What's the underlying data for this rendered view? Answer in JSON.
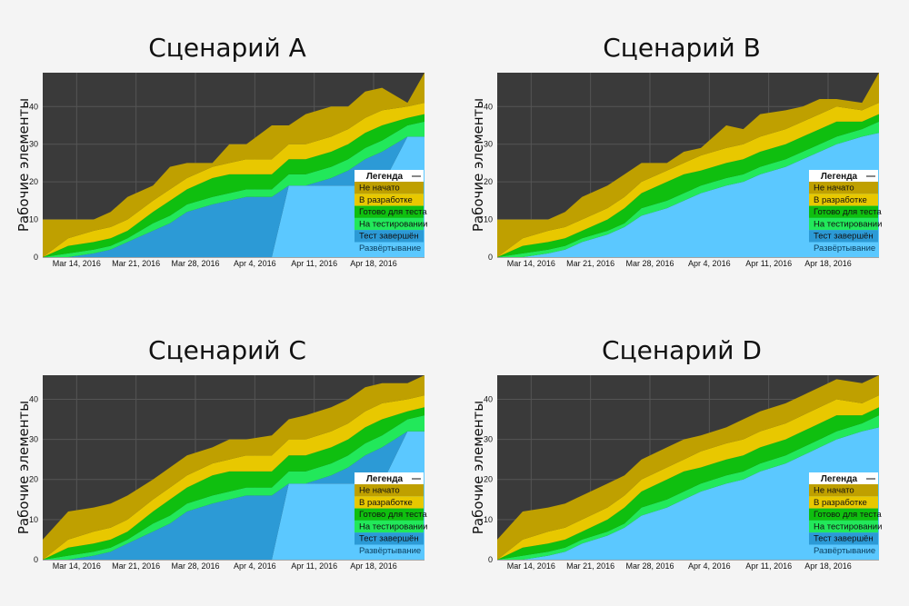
{
  "colors": {
    "background": "#3a3a3a",
    "grid": "#555555",
    "deploy": "#5bc8ff",
    "test_done": "#2c9ad6",
    "in_testing": "#22e85a",
    "ready_for_test": "#0fbf0f",
    "in_dev": "#e8c800",
    "not_started": "#bfa000"
  },
  "legend": {
    "title": "Легенда",
    "toggle": "—",
    "items": [
      {
        "label": "Не начато",
        "color_key": "not_started"
      },
      {
        "label": "В разработке",
        "color_key": "in_dev"
      },
      {
        "label": "Готово для теста",
        "color_key": "ready_for_test"
      },
      {
        "label": "На тестировании",
        "color_key": "in_testing"
      },
      {
        "label": "Тест завершён",
        "color_key": "test_done"
      },
      {
        "label": "Развёртывание",
        "color_key": "deploy"
      }
    ]
  },
  "chart_data": [
    {
      "type": "area",
      "title": "Сценарий A",
      "ylabel": "Рабочие элементы",
      "ylim": [
        0,
        49
      ],
      "yticks": [
        0,
        10,
        20,
        30,
        40
      ],
      "xlim": [
        "2016-03-10",
        "2016-04-24"
      ],
      "xticks": [
        "Mar 14, 2016",
        "Mar 21, 2016",
        "Mar 28, 2016",
        "Apr 4, 2016",
        "Apr 11, 2016",
        "Apr 18, 2016"
      ],
      "grid": true,
      "legend_position": "right",
      "x": [
        "2016-03-10",
        "2016-03-13",
        "2016-03-16",
        "2016-03-18",
        "2016-03-20",
        "2016-03-23",
        "2016-03-25",
        "2016-03-27",
        "2016-03-30",
        "2016-04-01",
        "2016-04-03",
        "2016-04-06",
        "2016-04-08",
        "2016-04-10",
        "2016-04-13",
        "2016-04-15",
        "2016-04-17",
        "2016-04-19",
        "2016-04-22",
        "2016-04-24"
      ],
      "series": [
        {
          "key": "deploy",
          "values": [
            0,
            0,
            0,
            0,
            0,
            0,
            0,
            0,
            0,
            0,
            0,
            0,
            19,
            19,
            19,
            19,
            19,
            19,
            32,
            32
          ]
        },
        {
          "key": "test_done",
          "values": [
            0,
            0,
            1,
            2,
            4,
            7,
            9,
            12,
            14,
            15,
            16,
            16,
            0,
            0,
            2,
            4,
            7,
            9,
            0,
            0
          ]
        },
        {
          "key": "in_testing",
          "values": [
            0,
            1,
            1,
            1,
            1,
            2,
            2,
            2,
            2,
            2,
            2,
            2,
            3,
            3,
            3,
            3,
            3,
            3,
            3,
            4
          ]
        },
        {
          "key": "ready_for_test",
          "values": [
            0,
            2,
            2,
            2,
            2,
            3,
            4,
            4,
            5,
            5,
            4,
            4,
            4,
            4,
            4,
            4,
            4,
            4,
            2,
            2
          ]
        },
        {
          "key": "in_dev",
          "values": [
            0,
            2,
            3,
            3,
            3,
            3,
            3,
            3,
            3,
            3,
            4,
            4,
            4,
            4,
            4,
            4,
            4,
            4,
            3,
            3
          ]
        },
        {
          "key": "not_started",
          "values": [
            10,
            5,
            3,
            4,
            6,
            4,
            6,
            4,
            1,
            5,
            4,
            9,
            5,
            8,
            8,
            6,
            7,
            6,
            1,
            8
          ]
        }
      ]
    },
    {
      "type": "area",
      "title": "Сценарий B",
      "ylabel": "Рабочие элементы",
      "ylim": [
        0,
        49
      ],
      "yticks": [
        0,
        10,
        20,
        30,
        40
      ],
      "xlim": [
        "2016-03-10",
        "2016-04-24"
      ],
      "xticks": [
        "Mar 14, 2016",
        "Mar 21, 2016",
        "Mar 28, 2016",
        "Apr 4, 2016",
        "Apr 11, 2016",
        "Apr 18, 2016"
      ],
      "grid": true,
      "legend_position": "right",
      "x": [
        "2016-03-10",
        "2016-03-13",
        "2016-03-16",
        "2016-03-18",
        "2016-03-20",
        "2016-03-23",
        "2016-03-25",
        "2016-03-27",
        "2016-03-30",
        "2016-04-01",
        "2016-04-03",
        "2016-04-06",
        "2016-04-08",
        "2016-04-10",
        "2016-04-13",
        "2016-04-15",
        "2016-04-17",
        "2016-04-19",
        "2016-04-22",
        "2016-04-24"
      ],
      "series": [
        {
          "key": "deploy",
          "values": [
            0,
            0,
            1,
            2,
            4,
            6,
            8,
            11,
            13,
            15,
            17,
            19,
            20,
            22,
            24,
            26,
            28,
            30,
            32,
            33
          ]
        },
        {
          "key": "test_done",
          "values": [
            0,
            0,
            0,
            0,
            0,
            0,
            0,
            0,
            0,
            0,
            0,
            0,
            0,
            0,
            0,
            0,
            0,
            0,
            0,
            0
          ]
        },
        {
          "key": "in_testing",
          "values": [
            0,
            1,
            1,
            1,
            1,
            1,
            1,
            2,
            2,
            2,
            2,
            2,
            2,
            2,
            2,
            2,
            2,
            2,
            2,
            3
          ]
        },
        {
          "key": "ready_for_test",
          "values": [
            0,
            2,
            2,
            2,
            2,
            3,
            4,
            4,
            5,
            5,
            4,
            4,
            4,
            4,
            4,
            4,
            4,
            4,
            2,
            2
          ]
        },
        {
          "key": "in_dev",
          "values": [
            0,
            2,
            3,
            3,
            3,
            3,
            3,
            3,
            3,
            3,
            4,
            4,
            4,
            4,
            4,
            4,
            4,
            4,
            3,
            3
          ]
        },
        {
          "key": "not_started",
          "values": [
            10,
            5,
            3,
            4,
            6,
            6,
            6,
            5,
            2,
            3,
            2,
            6,
            4,
            6,
            5,
            4,
            4,
            2,
            2,
            8
          ]
        }
      ]
    },
    {
      "type": "area",
      "title": "Сценарий C",
      "ylabel": "Рабочие элементы",
      "ylim": [
        0,
        46
      ],
      "yticks": [
        0,
        10,
        20,
        30,
        40
      ],
      "xlim": [
        "2016-03-10",
        "2016-04-24"
      ],
      "xticks": [
        "Mar 14, 2016",
        "Mar 21, 2016",
        "Mar 28, 2016",
        "Apr 4, 2016",
        "Apr 11, 2016",
        "Apr 18, 2016"
      ],
      "grid": true,
      "legend_position": "right",
      "x": [
        "2016-03-10",
        "2016-03-13",
        "2016-03-16",
        "2016-03-18",
        "2016-03-20",
        "2016-03-23",
        "2016-03-25",
        "2016-03-27",
        "2016-03-30",
        "2016-04-01",
        "2016-04-03",
        "2016-04-06",
        "2016-04-08",
        "2016-04-10",
        "2016-04-13",
        "2016-04-15",
        "2016-04-17",
        "2016-04-19",
        "2016-04-22",
        "2016-04-24"
      ],
      "series": [
        {
          "key": "deploy",
          "values": [
            0,
            0,
            0,
            0,
            0,
            0,
            0,
            0,
            0,
            0,
            0,
            0,
            19,
            19,
            19,
            19,
            19,
            19,
            32,
            32
          ]
        },
        {
          "key": "test_done",
          "values": [
            0,
            0,
            1,
            2,
            4,
            7,
            9,
            12,
            14,
            15,
            16,
            16,
            0,
            0,
            2,
            4,
            7,
            9,
            0,
            0
          ]
        },
        {
          "key": "in_testing",
          "values": [
            0,
            1,
            1,
            1,
            1,
            2,
            2,
            2,
            2,
            2,
            2,
            2,
            3,
            3,
            3,
            3,
            3,
            3,
            3,
            4
          ]
        },
        {
          "key": "ready_for_test",
          "values": [
            0,
            2,
            2,
            2,
            2,
            3,
            4,
            4,
            5,
            5,
            4,
            4,
            4,
            4,
            4,
            4,
            4,
            4,
            2,
            2
          ]
        },
        {
          "key": "in_dev",
          "values": [
            0,
            2,
            3,
            3,
            3,
            3,
            3,
            3,
            3,
            3,
            4,
            4,
            4,
            4,
            4,
            4,
            4,
            4,
            3,
            3
          ]
        },
        {
          "key": "not_started",
          "values": [
            5,
            7,
            6,
            6,
            6,
            5,
            5,
            5,
            4,
            5,
            4,
            5,
            5,
            6,
            6,
            6,
            6,
            5,
            4,
            5
          ]
        }
      ]
    },
    {
      "type": "area",
      "title": "Сценарий D",
      "ylabel": "Рабочие элементы",
      "ylim": [
        0,
        46
      ],
      "yticks": [
        0,
        10,
        20,
        30,
        40
      ],
      "xlim": [
        "2016-03-10",
        "2016-04-24"
      ],
      "xticks": [
        "Mar 14, 2016",
        "Mar 21, 2016",
        "Mar 28, 2016",
        "Apr 4, 2016",
        "Apr 11, 2016",
        "Apr 18, 2016"
      ],
      "grid": true,
      "legend_position": "right",
      "x": [
        "2016-03-10",
        "2016-03-13",
        "2016-03-16",
        "2016-03-18",
        "2016-03-20",
        "2016-03-23",
        "2016-03-25",
        "2016-03-27",
        "2016-03-30",
        "2016-04-01",
        "2016-04-03",
        "2016-04-06",
        "2016-04-08",
        "2016-04-10",
        "2016-04-13",
        "2016-04-15",
        "2016-04-17",
        "2016-04-19",
        "2016-04-22",
        "2016-04-24"
      ],
      "series": [
        {
          "key": "deploy",
          "values": [
            0,
            0,
            1,
            2,
            4,
            6,
            8,
            11,
            13,
            15,
            17,
            19,
            20,
            22,
            24,
            26,
            28,
            30,
            32,
            33
          ]
        },
        {
          "key": "test_done",
          "values": [
            0,
            0,
            0,
            0,
            0,
            0,
            0,
            0,
            0,
            0,
            0,
            0,
            0,
            0,
            0,
            0,
            0,
            0,
            0,
            0
          ]
        },
        {
          "key": "in_testing",
          "values": [
            0,
            1,
            1,
            1,
            1,
            1,
            1,
            2,
            2,
            2,
            2,
            2,
            2,
            2,
            2,
            2,
            2,
            2,
            2,
            3
          ]
        },
        {
          "key": "ready_for_test",
          "values": [
            0,
            2,
            2,
            2,
            2,
            3,
            4,
            4,
            5,
            5,
            4,
            4,
            4,
            4,
            4,
            4,
            4,
            4,
            2,
            2
          ]
        },
        {
          "key": "in_dev",
          "values": [
            0,
            2,
            3,
            3,
            3,
            3,
            3,
            3,
            3,
            3,
            4,
            4,
            4,
            4,
            4,
            4,
            4,
            4,
            3,
            3
          ]
        },
        {
          "key": "not_started",
          "values": [
            5,
            7,
            6,
            6,
            6,
            6,
            5,
            5,
            5,
            5,
            4,
            4,
            5,
            5,
            5,
            5,
            5,
            5,
            5,
            5
          ]
        }
      ]
    }
  ]
}
